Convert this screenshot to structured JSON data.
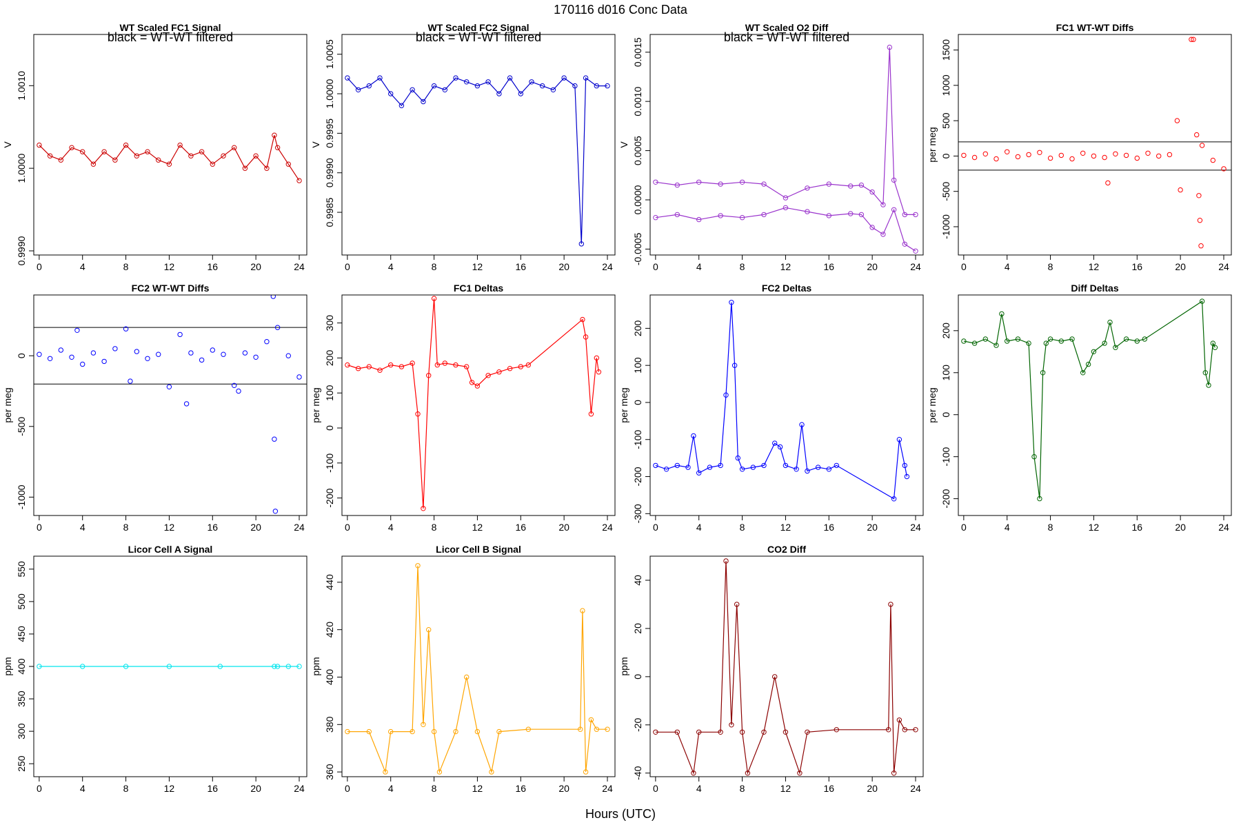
{
  "figure": {
    "suptitle": "170116    d016    Conc Data",
    "xlabel": "Hours (UTC)"
  },
  "chart_data": [
    {
      "type": "line",
      "title": "WT Scaled FC1 Signal",
      "annotation": "black = WT-WT filtered",
      "ylabel": "V",
      "color": "#cc0000",
      "secondary_color": "#000000",
      "xlim": [
        -0.5,
        24.7
      ],
      "ylim": [
        0.99895,
        1.00162
      ],
      "xticks": [
        0,
        4,
        8,
        12,
        16,
        20,
        24
      ],
      "yticks": [
        0.999,
        1.0,
        1.001
      ],
      "ytick_labels": [
        "0.9990",
        "1.0000",
        "1.0010"
      ],
      "series": [
        {
          "name": "signal",
          "x": [
            0,
            1,
            2,
            3,
            4,
            5,
            6,
            7,
            8,
            9,
            10,
            11,
            12,
            13,
            14,
            15,
            16,
            17,
            18,
            19,
            20,
            21,
            21.7,
            22,
            23,
            24
          ],
          "values": [
            1.00028,
            1.00015,
            1.0001,
            1.00025,
            1.0002,
            1.00005,
            1.0002,
            1.0001,
            1.00028,
            1.00015,
            1.0002,
            1.0001,
            1.00005,
            1.00028,
            1.00015,
            1.0002,
            1.00005,
            1.00015,
            1.00025,
            1.0,
            1.00015,
            1.0,
            1.0004,
            1.00025,
            1.00005,
            0.99985
          ]
        }
      ]
    },
    {
      "type": "line",
      "title": "WT Scaled FC2 Signal",
      "annotation": "black = WT-WT filtered",
      "ylabel": "V",
      "color": "#0000cc",
      "secondary_color": "#000000",
      "xlim": [
        -0.5,
        24.7
      ],
      "ylim": [
        0.99796,
        1.00075
      ],
      "xticks": [
        0,
        4,
        8,
        12,
        16,
        20,
        24
      ],
      "yticks": [
        0.9985,
        0.999,
        0.9995,
        1.0,
        1.0005
      ],
      "ytick_labels": [
        "0.9985",
        "0.9990",
        "0.9995",
        "1.0000",
        "1.0005"
      ],
      "series": [
        {
          "name": "signal",
          "x": [
            0,
            1,
            2,
            3,
            4,
            5,
            6,
            7,
            8,
            9,
            10,
            11,
            12,
            13,
            14,
            15,
            16,
            17,
            18,
            19,
            20,
            21,
            21.6,
            22,
            23,
            24
          ],
          "values": [
            1.0002,
            1.00005,
            1.0001,
            1.0002,
            1.0,
            0.99985,
            1.00005,
            0.9999,
            1.0001,
            1.00005,
            1.0002,
            1.00015,
            1.0001,
            1.00015,
            1.0,
            1.0002,
            1.0,
            1.00015,
            1.0001,
            1.00005,
            1.0002,
            1.0001,
            0.9981,
            1.0002,
            1.0001,
            1.0001
          ]
        }
      ]
    },
    {
      "type": "line",
      "title": "WT Scaled O2 Diff",
      "annotation": "black = WT-WT filtered",
      "ylabel": "V",
      "color": "#9932cc",
      "secondary_color": "#ee82ee",
      "xlim": [
        -0.5,
        24.7
      ],
      "ylim": [
        -0.00056,
        0.00168
      ],
      "xticks": [
        0,
        4,
        8,
        12,
        16,
        20,
        24
      ],
      "yticks": [
        -0.0005,
        0.0,
        0.0005,
        0.001,
        0.0015
      ],
      "ytick_labels": [
        "-0.0005",
        "0.0000",
        "0.0005",
        "0.0010",
        "0.0015"
      ],
      "series": [
        {
          "name": "upper",
          "x": [
            0,
            2,
            4,
            6,
            8,
            10,
            12,
            14,
            16,
            18,
            19,
            20,
            21,
            21.6,
            22,
            23,
            24
          ],
          "values": [
            0.00018,
            0.00015,
            0.00018,
            0.00016,
            0.00018,
            0.00016,
            2e-05,
            0.00012,
            0.00016,
            0.00014,
            0.00015,
            8e-05,
            -5e-05,
            0.00155,
            0.0002,
            -0.00015,
            -0.00015
          ]
        },
        {
          "name": "lower",
          "x": [
            0,
            2,
            4,
            6,
            8,
            10,
            12,
            14,
            16,
            18,
            19,
            20,
            21,
            22,
            23,
            24
          ],
          "values": [
            -0.00018,
            -0.00015,
            -0.0002,
            -0.00016,
            -0.00018,
            -0.00015,
            -8e-05,
            -0.00012,
            -0.00016,
            -0.00014,
            -0.00015,
            -0.00028,
            -0.00035,
            -0.0001,
            -0.00045,
            -0.00052
          ]
        }
      ]
    },
    {
      "type": "scatter",
      "title": "FC1 WT-WT Diffs",
      "ylabel": "per meg",
      "color": "#ff0000",
      "xlim": [
        -0.5,
        24.7
      ],
      "ylim": [
        -1400,
        1720
      ],
      "xticks": [
        0,
        4,
        8,
        12,
        16,
        20,
        24
      ],
      "yticks": [
        -1000,
        -500,
        0,
        500,
        1000,
        1500
      ],
      "hlines": [
        200,
        -200
      ],
      "series": [
        {
          "name": "diffs",
          "x": [
            0,
            1,
            2,
            3,
            4,
            5,
            6,
            7,
            8,
            9,
            10,
            11,
            12,
            13,
            13.3,
            14,
            15,
            16,
            17,
            18,
            19,
            19.7,
            20,
            21,
            21.2,
            21.5,
            21.7,
            21.8,
            21.9,
            22,
            23,
            24
          ],
          "values": [
            10,
            -20,
            30,
            -40,
            60,
            -10,
            20,
            50,
            -30,
            10,
            -40,
            40,
            0,
            -20,
            -380,
            30,
            10,
            -30,
            40,
            0,
            20,
            500,
            -480,
            1650,
            1650,
            300,
            -560,
            -910,
            -1270,
            150,
            -60,
            -180
          ]
        }
      ]
    },
    {
      "type": "scatter",
      "title": "FC2 WT-WT Diffs",
      "ylabel": "per meg",
      "color": "#0000ff",
      "xlim": [
        -0.5,
        24.7
      ],
      "ylim": [
        -1130,
        430
      ],
      "xticks": [
        0,
        4,
        8,
        12,
        16,
        20,
        24
      ],
      "yticks": [
        -1000,
        -500,
        0
      ],
      "hlines": [
        200,
        -200
      ],
      "series": [
        {
          "name": "diffs",
          "x": [
            0,
            1,
            2,
            3,
            3.5,
            4,
            5,
            6,
            7,
            8,
            8.4,
            9,
            10,
            11,
            12,
            13,
            13.6,
            14,
            15,
            16,
            17,
            18,
            18.4,
            19,
            20,
            21,
            21.6,
            21.7,
            21.8,
            22,
            23,
            24
          ],
          "values": [
            10,
            -20,
            40,
            -10,
            180,
            -60,
            20,
            -40,
            50,
            190,
            -180,
            30,
            -20,
            10,
            -220,
            150,
            -340,
            20,
            -30,
            40,
            10,
            -210,
            -250,
            20,
            -10,
            100,
            420,
            -590,
            -1100,
            200,
            0,
            -150
          ]
        }
      ]
    },
    {
      "type": "line",
      "title": "FC1 Deltas",
      "ylabel": "per meg",
      "color": "#ff0000",
      "xlim": [
        -0.5,
        24.7
      ],
      "ylim": [
        -250,
        380
      ],
      "xticks": [
        0,
        4,
        8,
        12,
        16,
        20,
        24
      ],
      "yticks": [
        -200,
        -100,
        0,
        100,
        200,
        300
      ],
      "series": [
        {
          "name": "deltas",
          "x": [
            0,
            1,
            2,
            3,
            4,
            5,
            6,
            6.5,
            7,
            7.5,
            8,
            8.3,
            9,
            10,
            11,
            11.5,
            12,
            13,
            14,
            15,
            16,
            16.7,
            21.7,
            22,
            22.5,
            23,
            23.2
          ],
          "values": [
            180,
            170,
            175,
            165,
            180,
            175,
            185,
            40,
            -230,
            150,
            370,
            180,
            185,
            180,
            175,
            130,
            120,
            150,
            160,
            170,
            175,
            180,
            310,
            260,
            40,
            200,
            160
          ]
        }
      ]
    },
    {
      "type": "line",
      "title": "FC2 Deltas",
      "ylabel": "per meg",
      "color": "#0000ff",
      "xlim": [
        -0.5,
        24.7
      ],
      "ylim": [
        -305,
        290
      ],
      "xticks": [
        0,
        4,
        8,
        12,
        16,
        20,
        24
      ],
      "yticks": [
        -300,
        -200,
        -100,
        0,
        100,
        200
      ],
      "series": [
        {
          "name": "deltas",
          "x": [
            0,
            1,
            2,
            3,
            3.5,
            4,
            5,
            6,
            6.5,
            7,
            7.3,
            7.6,
            8,
            9,
            10,
            11,
            11.5,
            12,
            13,
            13.5,
            14,
            15,
            16,
            16.7,
            22,
            22.5,
            23,
            23.2
          ],
          "values": [
            -170,
            -180,
            -170,
            -175,
            -90,
            -190,
            -175,
            -170,
            20,
            270,
            100,
            -150,
            -180,
            -175,
            -170,
            -110,
            -120,
            -170,
            -180,
            -60,
            -185,
            -175,
            -180,
            -170,
            -260,
            -100,
            -170,
            -200
          ]
        }
      ]
    },
    {
      "type": "line",
      "title": "Diff Deltas",
      "ylabel": "per meg",
      "color": "#006400",
      "xlim": [
        -0.5,
        24.7
      ],
      "ylim": [
        -240,
        285
      ],
      "xticks": [
        0,
        4,
        8,
        12,
        16,
        20,
        24
      ],
      "yticks": [
        -200,
        -100,
        0,
        100,
        200
      ],
      "series": [
        {
          "name": "deltas",
          "x": [
            0,
            1,
            2,
            3,
            3.5,
            4,
            5,
            6,
            6.5,
            7,
            7.3,
            7.6,
            8,
            9,
            10,
            11,
            11.5,
            12,
            13,
            13.5,
            14,
            15,
            16,
            16.7,
            22,
            22.3,
            22.6,
            23,
            23.2
          ],
          "values": [
            175,
            170,
            180,
            165,
            240,
            175,
            180,
            170,
            -100,
            -200,
            100,
            170,
            180,
            175,
            180,
            100,
            120,
            150,
            170,
            220,
            160,
            180,
            175,
            180,
            270,
            100,
            70,
            170,
            160
          ]
        }
      ]
    },
    {
      "type": "line",
      "title": "Licor Cell A Signal",
      "ylabel": "ppm",
      "color": "#00e5ee",
      "xlim": [
        -0.5,
        24.7
      ],
      "ylim": [
        230,
        570
      ],
      "xticks": [
        0,
        4,
        8,
        12,
        16,
        20,
        24
      ],
      "yticks": [
        250,
        300,
        350,
        400,
        450,
        500,
        550
      ],
      "series": [
        {
          "name": "signal",
          "x": [
            0,
            4,
            8,
            12,
            16.7,
            21.7,
            22,
            23,
            24
          ],
          "values": [
            400,
            400,
            400,
            400,
            400,
            400,
            400,
            400,
            400
          ]
        }
      ]
    },
    {
      "type": "line",
      "title": "Licor Cell B Signal",
      "ylabel": "ppm",
      "color": "#ffa500",
      "xlim": [
        -0.5,
        24.7
      ],
      "ylim": [
        358,
        451
      ],
      "xticks": [
        0,
        4,
        8,
        12,
        16,
        20,
        24
      ],
      "yticks": [
        360,
        380,
        400,
        420,
        440
      ],
      "series": [
        {
          "name": "signal",
          "x": [
            0,
            2,
            3.5,
            4,
            6,
            6.5,
            7,
            7.5,
            8,
            8.5,
            10,
            11,
            12,
            13.3,
            14,
            16.7,
            21.5,
            21.7,
            22,
            22.5,
            23,
            24
          ],
          "values": [
            377,
            377,
            360,
            377,
            377,
            447,
            380,
            420,
            377,
            360,
            377,
            400,
            377,
            360,
            377,
            378,
            378,
            428,
            360,
            382,
            378,
            378
          ]
        }
      ]
    },
    {
      "type": "line",
      "title": "CO2 Diff",
      "ylabel": "ppm",
      "color": "#8b0000",
      "xlim": [
        -0.5,
        24.7
      ],
      "ylim": [
        -41.5,
        50
      ],
      "xticks": [
        0,
        4,
        8,
        12,
        16,
        20,
        24
      ],
      "yticks": [
        -40,
        -20,
        0,
        20,
        40
      ],
      "series": [
        {
          "name": "diff",
          "x": [
            0,
            2,
            3.5,
            4,
            6,
            6.5,
            7,
            7.5,
            8,
            8.5,
            10,
            11,
            12,
            13.3,
            14,
            16.7,
            21.5,
            21.7,
            22,
            22.5,
            23,
            24
          ],
          "values": [
            -23,
            -23,
            -40,
            -23,
            -23,
            48,
            -20,
            30,
            -23,
            -40,
            -23,
            0,
            -23,
            -40,
            -23,
            -22,
            -22,
            30,
            -40,
            -18,
            -22,
            -22
          ]
        }
      ]
    }
  ]
}
